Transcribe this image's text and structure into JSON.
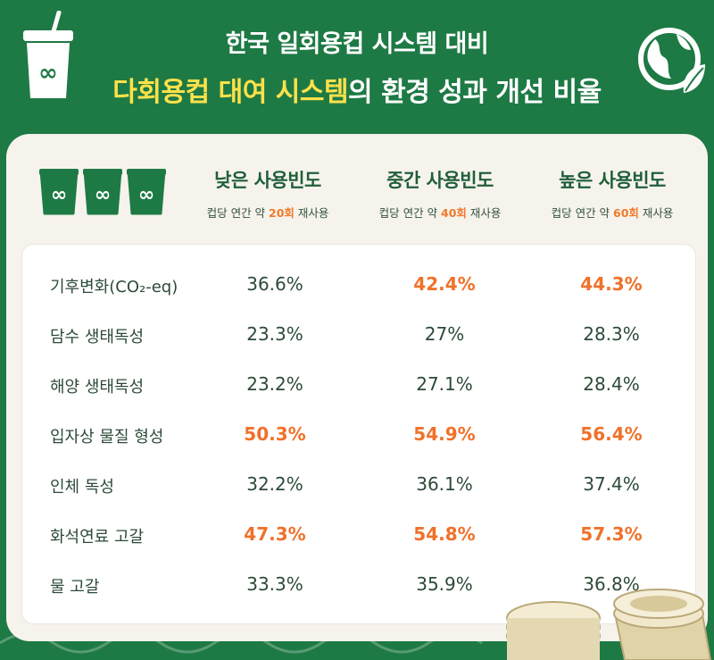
{
  "header": {
    "title_line1": "한국 일회용컵 시스템 대비",
    "title_line2_highlight": "다회용컵 대여 시스템",
    "title_line2_rest": "의 환경 성과 개선 비율"
  },
  "columns": [
    {
      "name": "낮은 사용빈도",
      "sub_prefix": "컵당 연간 약 ",
      "sub_highlight": "20회",
      "sub_suffix": " 재사용"
    },
    {
      "name": "중간 사용빈도",
      "sub_prefix": "컵당 연간 약 ",
      "sub_highlight": "40회",
      "sub_suffix": " 재사용"
    },
    {
      "name": "높은 사용빈도",
      "sub_prefix": "컵당 연간 약 ",
      "sub_highlight": "60회",
      "sub_suffix": " 재사용"
    }
  ],
  "rows": [
    {
      "label": "기후변화(CO₂-eq)",
      "values": [
        "36.6%",
        "42.4%",
        "44.3%"
      ],
      "highlight": [
        false,
        true,
        true
      ]
    },
    {
      "label": "담수 생태독성",
      "values": [
        "23.3%",
        "27%",
        "28.3%"
      ],
      "highlight": [
        false,
        false,
        false
      ]
    },
    {
      "label": "해양 생태독성",
      "values": [
        "23.2%",
        "27.1%",
        "28.4%"
      ],
      "highlight": [
        false,
        false,
        false
      ]
    },
    {
      "label": "입자상 물질 형성",
      "values": [
        "50.3%",
        "54.9%",
        "56.4%"
      ],
      "highlight": [
        true,
        true,
        true
      ]
    },
    {
      "label": "인체 독성",
      "values": [
        "32.2%",
        "36.1%",
        "37.4%"
      ],
      "highlight": [
        false,
        false,
        false
      ]
    },
    {
      "label": "화석연료 고갈",
      "values": [
        "47.3%",
        "54.8%",
        "57.3%"
      ],
      "highlight": [
        true,
        true,
        true
      ]
    },
    {
      "label": "물 고갈",
      "values": [
        "33.3%",
        "35.9%",
        "36.8%"
      ],
      "highlight": [
        false,
        false,
        false
      ]
    }
  ],
  "icons": {
    "header_left": "reusable-cup-icon",
    "header_right": "globe-leaf-icon",
    "table_header": "reusable-cups-icon",
    "decoration": "cup-stack-illustration"
  },
  "colors": {
    "brand_green": "#1e7a45",
    "highlight_yellow": "#ffe14a",
    "highlight_orange": "#f0712a",
    "text_green": "#1f5f3a",
    "card_bg": "#f6f3ec"
  }
}
